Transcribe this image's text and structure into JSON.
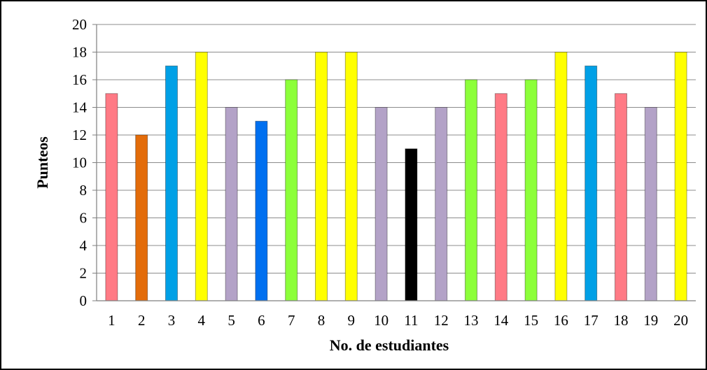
{
  "chart_data": {
    "type": "bar",
    "title": "",
    "xlabel": "No. de estudiantes",
    "ylabel": "Punteos",
    "categories": [
      "1",
      "2",
      "3",
      "4",
      "5",
      "6",
      "7",
      "8",
      "9",
      "10",
      "11",
      "12",
      "13",
      "14",
      "15",
      "16",
      "17",
      "18",
      "19",
      "20"
    ],
    "values": [
      15,
      12,
      17,
      18,
      14,
      13,
      16,
      18,
      18,
      14,
      11,
      14,
      16,
      15,
      16,
      18,
      17,
      15,
      14,
      18
    ],
    "bar_colors": [
      "#ff7a85",
      "#e36c0a",
      "#00a0e6",
      "#ffff00",
      "#b3a2c7",
      "#0070f0",
      "#8cff3a",
      "#ffff00",
      "#ffff00",
      "#b3a2c7",
      "#000000",
      "#b3a2c7",
      "#8cff3a",
      "#ff7a85",
      "#8cff3a",
      "#ffff00",
      "#00a0e6",
      "#ff7a85",
      "#b3a2c7",
      "#ffff00"
    ],
    "ylim": [
      0,
      20
    ],
    "yticks": [
      "0",
      "2",
      "4",
      "6",
      "8",
      "10",
      "12",
      "14",
      "16",
      "18",
      "20"
    ],
    "grid": true,
    "legend": "none"
  }
}
